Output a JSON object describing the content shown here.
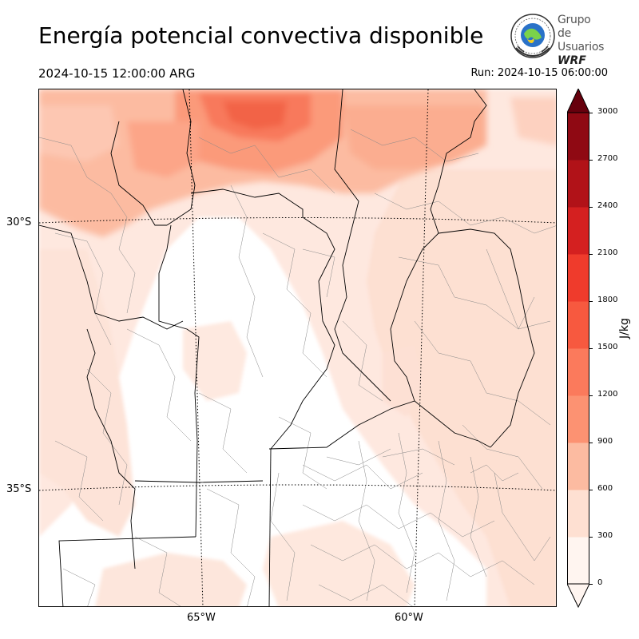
{
  "header": {
    "title": "Energía potencial convectiva disponible",
    "valid_time": "2024-10-15 12:00:00 ARG",
    "run_time": "Run: 2024-10-15 06:00:00"
  },
  "logo": {
    "line1": "Grupo de",
    "line2": "Usuarios",
    "line3": "WRF"
  },
  "map": {
    "lat_labels": [
      "30°S",
      "35°S"
    ],
    "lon_labels": [
      "65°W",
      "60°W"
    ]
  },
  "colorbar": {
    "unit": "J/kg",
    "ticks": [
      "0",
      "300",
      "600",
      "900",
      "1200",
      "1500",
      "1800",
      "2100",
      "2400",
      "2700",
      "3000"
    ],
    "colors": [
      "#fff5f0",
      "#fee0d2",
      "#fcbba1",
      "#fc9272",
      "#fb7a5c",
      "#f7593f",
      "#ef3b2c",
      "#d42020",
      "#b11218",
      "#8f0913",
      "#67000d"
    ],
    "extend": "both"
  }
}
